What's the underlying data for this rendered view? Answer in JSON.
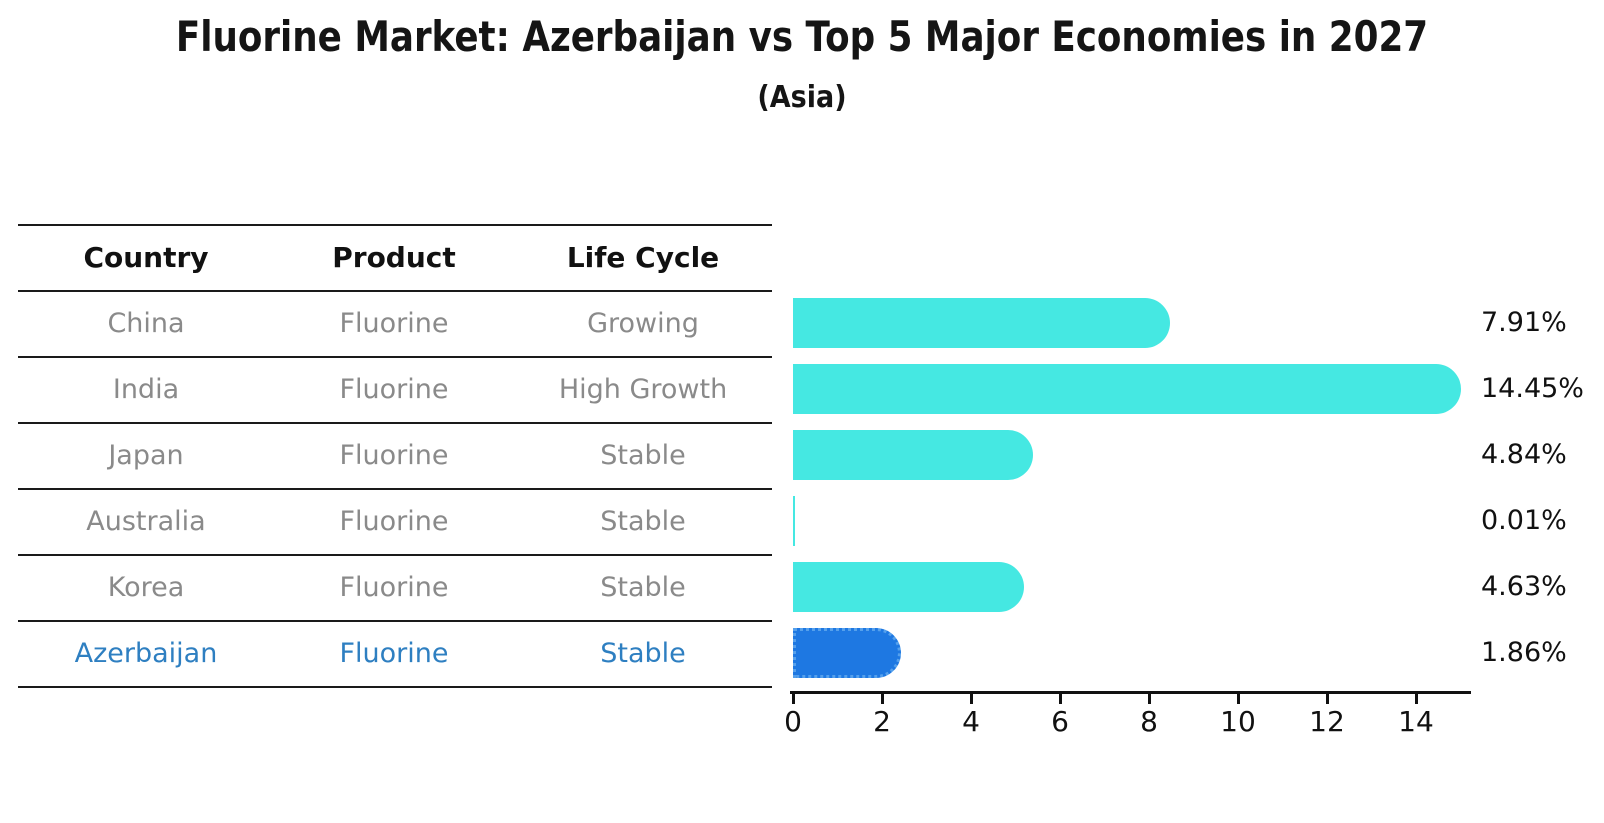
{
  "chart": {
    "title": "Fluorine Market: Azerbaijan vs Top 5 Major Economies in 2027",
    "subtitle": "(Asia)"
  },
  "table": {
    "headers": [
      "Country",
      "Product",
      "Life Cycle"
    ],
    "rows": [
      {
        "country": "China",
        "product": "Fluorine",
        "life_cycle": "Growing",
        "highlighted": false
      },
      {
        "country": "India",
        "product": "Fluorine",
        "life_cycle": "High Growth",
        "highlighted": false
      },
      {
        "country": "Japan",
        "product": "Fluorine",
        "life_cycle": "Stable",
        "highlighted": false
      },
      {
        "country": "Australia",
        "product": "Fluorine",
        "life_cycle": "Stable",
        "highlighted": false
      },
      {
        "country": "Korea",
        "product": "Fluorine",
        "life_cycle": "Stable",
        "highlighted": false
      },
      {
        "country": "Azerbaijan",
        "product": "Fluorine",
        "life_cycle": "Stable",
        "highlighted": true
      }
    ]
  },
  "chart_data": {
    "type": "bar",
    "orientation": "horizontal",
    "title": "Fluorine Market: Azerbaijan vs Top 5 Major Economies in 2027",
    "subtitle": "(Asia)",
    "categories": [
      "China",
      "India",
      "Japan",
      "Australia",
      "Korea",
      "Azerbaijan"
    ],
    "values": [
      7.91,
      14.45,
      4.84,
      0.01,
      4.63,
      1.86
    ],
    "value_labels": [
      "7.91%",
      "14.45%",
      "4.84%",
      "0.01%",
      "4.63%",
      "1.86%"
    ],
    "xlabel": "",
    "ylabel": "",
    "xlim": [
      0,
      15.2
    ],
    "xticks": [
      0,
      2,
      4,
      6,
      8,
      10,
      12,
      14
    ],
    "grid": false,
    "legend": null,
    "highlight_category": "Azerbaijan",
    "colors": {
      "bar_default": "#45E8E2",
      "bar_highlight": "#1E78E2",
      "bar_highlight_border": "#55A0EC",
      "axis": "#111111",
      "value_label": "#111111",
      "table_text": "#8A8A8A",
      "table_header_text": "#111111",
      "highlight_row_text": "#2E7FC1"
    }
  }
}
